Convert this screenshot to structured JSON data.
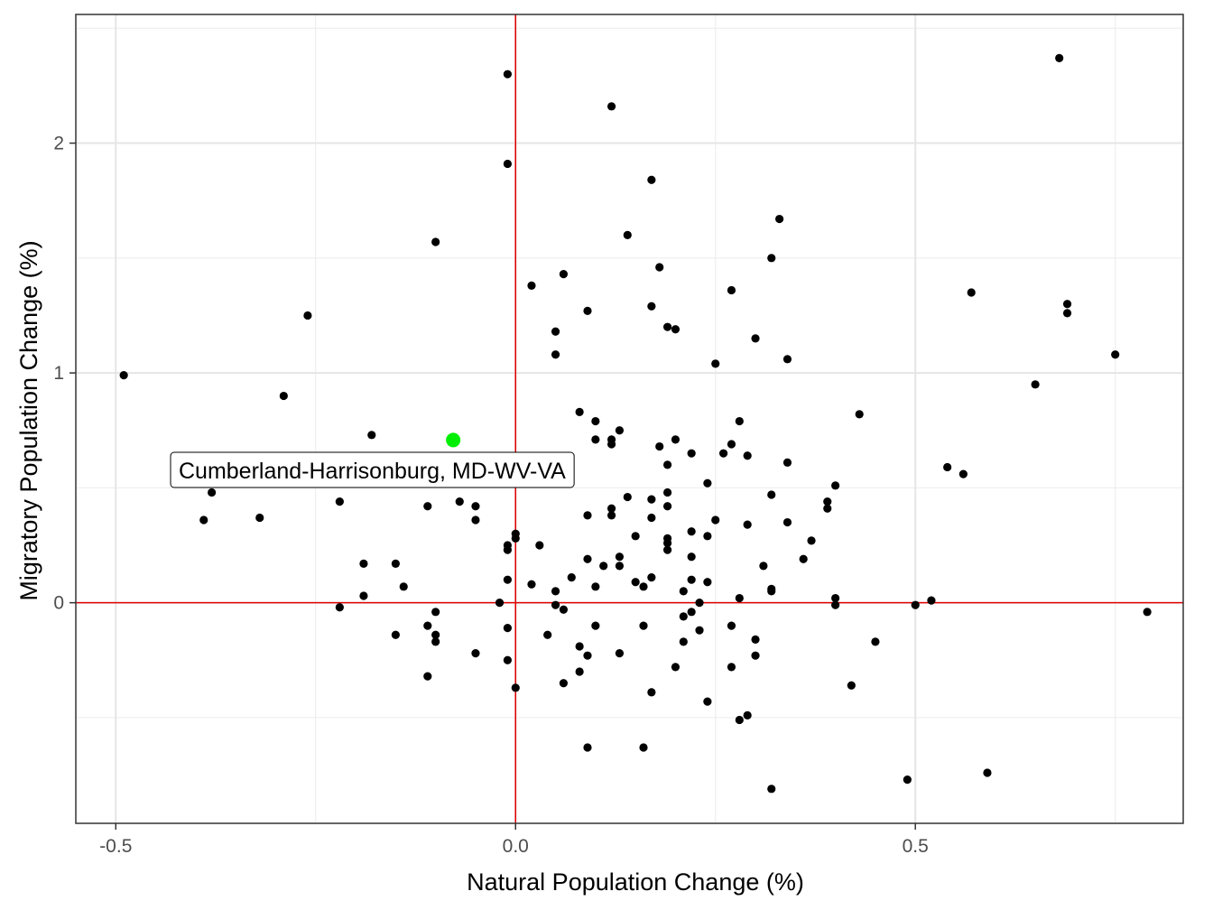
{
  "chart_data": {
    "type": "scatter",
    "xlabel": "Natural Population Change (%)",
    "ylabel": "Migratory Population Change (%)",
    "xlim": [
      -0.55,
      0.835
    ],
    "ylim": [
      -0.96,
      2.56
    ],
    "x_ticks": [
      -0.5,
      0.0,
      0.5
    ],
    "x_tick_labels": [
      "-0.5",
      "0.0",
      "0.5"
    ],
    "y_ticks": [
      0,
      1,
      2
    ],
    "y_tick_labels": [
      "0",
      "1",
      "2"
    ],
    "grid": true,
    "reference_lines": {
      "x": 0,
      "y": 0,
      "color": "#e00000"
    },
    "point_color": "#000000",
    "highlight": {
      "label": "Cumberland-Harrisonburg, MD-WV-VA",
      "x": -0.078,
      "y": 0.708,
      "color": "#00ee00"
    },
    "points": [
      [
        -0.49,
        0.99
      ],
      [
        -0.26,
        1.25
      ],
      [
        -0.29,
        0.9
      ],
      [
        -0.18,
        0.73
      ],
      [
        -0.16,
        0.63
      ],
      [
        -0.38,
        0.48
      ],
      [
        -0.39,
        0.36
      ],
      [
        -0.32,
        0.37
      ],
      [
        -0.22,
        0.44
      ],
      [
        -0.19,
        0.17
      ],
      [
        -0.19,
        0.03
      ],
      [
        -0.22,
        -0.02
      ],
      [
        -0.15,
        0.17
      ],
      [
        -0.14,
        0.07
      ],
      [
        -0.15,
        -0.14
      ],
      [
        -0.1,
        1.57
      ],
      [
        -0.11,
        0.42
      ],
      [
        -0.07,
        0.44
      ],
      [
        -0.05,
        0.42
      ],
      [
        -0.05,
        0.36
      ],
      [
        -0.1,
        -0.04
      ],
      [
        -0.11,
        -0.1
      ],
      [
        -0.1,
        -0.14
      ],
      [
        -0.1,
        -0.17
      ],
      [
        -0.11,
        -0.32
      ],
      [
        -0.05,
        -0.22
      ],
      [
        -0.02,
        0.0
      ],
      [
        -0.01,
        2.3
      ],
      [
        -0.01,
        1.91
      ],
      [
        -0.01,
        0.25
      ],
      [
        -0.01,
        0.23
      ],
      [
        -0.01,
        0.1
      ],
      [
        -0.01,
        -0.11
      ],
      [
        -0.01,
        -0.25
      ],
      [
        0.0,
        0.3
      ],
      [
        0.0,
        0.28
      ],
      [
        0.0,
        -0.37
      ],
      [
        0.02,
        1.38
      ],
      [
        0.02,
        0.08
      ],
      [
        0.03,
        0.25
      ],
      [
        0.04,
        -0.14
      ],
      [
        0.05,
        1.18
      ],
      [
        0.05,
        1.08
      ],
      [
        0.05,
        0.05
      ],
      [
        0.05,
        -0.01
      ],
      [
        0.06,
        1.43
      ],
      [
        0.06,
        -0.03
      ],
      [
        0.06,
        -0.35
      ],
      [
        0.07,
        0.11
      ],
      [
        0.08,
        0.83
      ],
      [
        0.08,
        -0.19
      ],
      [
        0.08,
        -0.3
      ],
      [
        0.09,
        1.27
      ],
      [
        0.09,
        0.38
      ],
      [
        0.09,
        0.19
      ],
      [
        0.09,
        -0.23
      ],
      [
        0.09,
        -0.63
      ],
      [
        0.1,
        0.79
      ],
      [
        0.1,
        0.71
      ],
      [
        0.1,
        0.07
      ],
      [
        0.1,
        -0.1
      ],
      [
        0.11,
        0.16
      ],
      [
        0.12,
        2.16
      ],
      [
        0.12,
        0.71
      ],
      [
        0.12,
        0.69
      ],
      [
        0.12,
        0.41
      ],
      [
        0.12,
        0.38
      ],
      [
        0.13,
        0.75
      ],
      [
        0.13,
        0.2
      ],
      [
        0.13,
        0.16
      ],
      [
        0.13,
        -0.22
      ],
      [
        0.14,
        1.6
      ],
      [
        0.14,
        0.46
      ],
      [
        0.15,
        0.29
      ],
      [
        0.15,
        0.09
      ],
      [
        0.16,
        0.07
      ],
      [
        0.16,
        -0.1
      ],
      [
        0.16,
        -0.63
      ],
      [
        0.17,
        1.84
      ],
      [
        0.17,
        1.29
      ],
      [
        0.17,
        0.45
      ],
      [
        0.17,
        0.37
      ],
      [
        0.17,
        0.11
      ],
      [
        0.17,
        -0.39
      ],
      [
        0.18,
        1.46
      ],
      [
        0.18,
        0.68
      ],
      [
        0.19,
        1.2
      ],
      [
        0.19,
        0.6
      ],
      [
        0.19,
        0.48
      ],
      [
        0.19,
        0.42
      ],
      [
        0.19,
        0.28
      ],
      [
        0.19,
        0.26
      ],
      [
        0.19,
        0.23
      ],
      [
        0.2,
        1.19
      ],
      [
        0.2,
        0.71
      ],
      [
        0.2,
        -0.28
      ],
      [
        0.21,
        0.05
      ],
      [
        0.21,
        -0.06
      ],
      [
        0.21,
        -0.17
      ],
      [
        0.22,
        0.65
      ],
      [
        0.22,
        0.31
      ],
      [
        0.22,
        0.2
      ],
      [
        0.22,
        0.1
      ],
      [
        0.22,
        -0.04
      ],
      [
        0.23,
        0.0
      ],
      [
        0.23,
        -0.12
      ],
      [
        0.24,
        0.52
      ],
      [
        0.24,
        0.29
      ],
      [
        0.24,
        0.09
      ],
      [
        0.24,
        -0.43
      ],
      [
        0.25,
        1.04
      ],
      [
        0.25,
        0.36
      ],
      [
        0.26,
        0.65
      ],
      [
        0.27,
        1.36
      ],
      [
        0.27,
        0.69
      ],
      [
        0.27,
        -0.1
      ],
      [
        0.27,
        -0.28
      ],
      [
        0.28,
        0.79
      ],
      [
        0.28,
        0.02
      ],
      [
        0.28,
        -0.51
      ],
      [
        0.29,
        0.64
      ],
      [
        0.29,
        0.34
      ],
      [
        0.29,
        -0.49
      ],
      [
        0.3,
        1.15
      ],
      [
        0.3,
        -0.16
      ],
      [
        0.3,
        -0.23
      ],
      [
        0.31,
        0.16
      ],
      [
        0.32,
        1.5
      ],
      [
        0.32,
        0.47
      ],
      [
        0.32,
        0.06
      ],
      [
        0.32,
        0.05
      ],
      [
        0.32,
        -0.81
      ],
      [
        0.33,
        1.67
      ],
      [
        0.34,
        1.06
      ],
      [
        0.34,
        0.61
      ],
      [
        0.34,
        0.35
      ],
      [
        0.36,
        0.19
      ],
      [
        0.37,
        0.27
      ],
      [
        0.39,
        0.44
      ],
      [
        0.39,
        0.41
      ],
      [
        0.4,
        0.51
      ],
      [
        0.4,
        0.02
      ],
      [
        0.4,
        -0.01
      ],
      [
        0.42,
        -0.36
      ],
      [
        0.43,
        0.82
      ],
      [
        0.45,
        -0.17
      ],
      [
        0.49,
        -0.77
      ],
      [
        0.5,
        -0.01
      ],
      [
        0.52,
        0.01
      ],
      [
        0.54,
        0.59
      ],
      [
        0.56,
        0.56
      ],
      [
        0.57,
        1.35
      ],
      [
        0.59,
        -0.74
      ],
      [
        0.65,
        0.95
      ],
      [
        0.68,
        2.37
      ],
      [
        0.69,
        1.3
      ],
      [
        0.69,
        1.26
      ],
      [
        0.75,
        1.08
      ],
      [
        0.79,
        -0.04
      ]
    ]
  }
}
